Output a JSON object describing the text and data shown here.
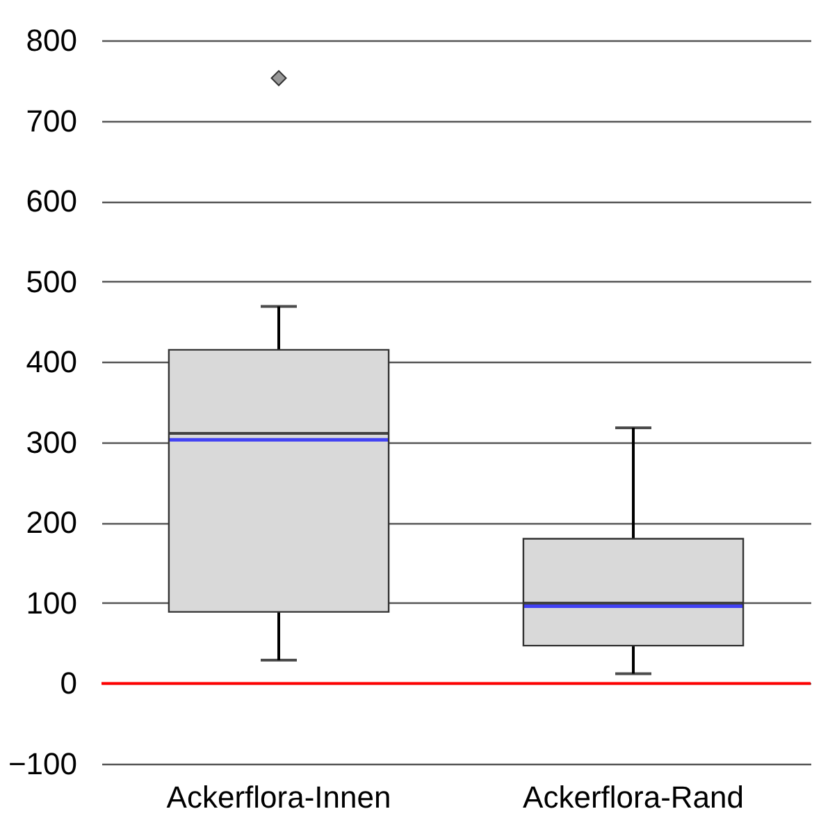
{
  "chart_data": {
    "type": "box",
    "categories": [
      "Ackerflora-Innen",
      "Ackerflora-Rand"
    ],
    "boxes": [
      {
        "low": 29,
        "q1": 89,
        "median": 311,
        "q3": 415,
        "high": 469,
        "mean": 303,
        "outliers": [
          753
        ]
      },
      {
        "low": 12,
        "q1": 47,
        "median": 100,
        "q3": 180,
        "high": 318,
        "mean": 96
      }
    ],
    "ylim": [
      -100,
      800
    ],
    "yticks": [
      -100,
      0,
      100,
      200,
      300,
      400,
      500,
      600,
      700,
      800
    ],
    "grid": "y",
    "ref_lines": [
      {
        "axis": "y",
        "value": 0,
        "color": "#ff0000"
      }
    ]
  }
}
